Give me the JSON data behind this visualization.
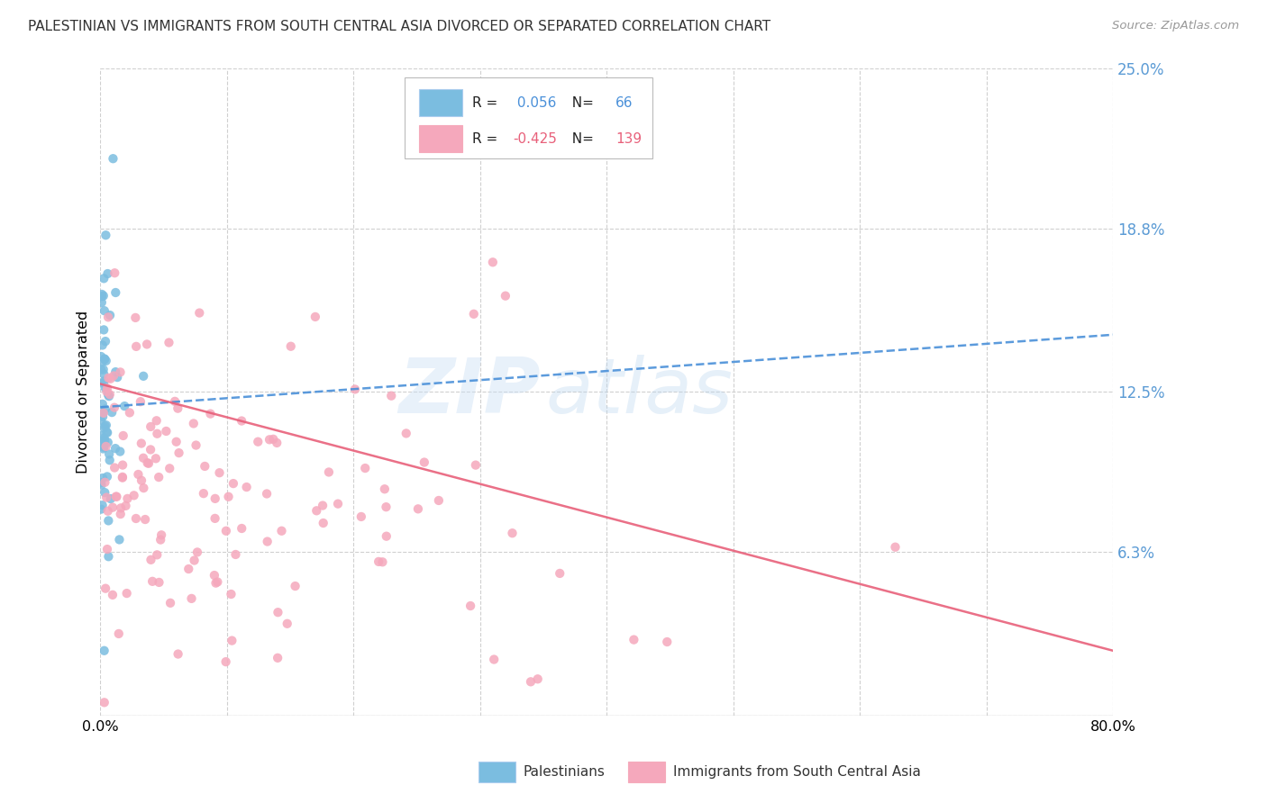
{
  "title": "PALESTINIAN VS IMMIGRANTS FROM SOUTH CENTRAL ASIA DIVORCED OR SEPARATED CORRELATION CHART",
  "source": "Source: ZipAtlas.com",
  "ylabel": "Divorced or Separated",
  "xlim": [
    0.0,
    0.8
  ],
  "ylim": [
    0.0,
    0.25
  ],
  "ytick_vals": [
    0.0,
    0.063,
    0.125,
    0.188,
    0.25
  ],
  "ytick_labels": [
    "",
    "6.3%",
    "12.5%",
    "18.8%",
    "25.0%"
  ],
  "xtick_vals": [
    0.0,
    0.1,
    0.2,
    0.3,
    0.4,
    0.5,
    0.6,
    0.7,
    0.8
  ],
  "xtick_labels": [
    "0.0%",
    "",
    "",
    "",
    "",
    "",
    "",
    "",
    "80.0%"
  ],
  "blue_R": 0.056,
  "blue_N": 66,
  "pink_R": -0.425,
  "pink_N": 139,
  "blue_color": "#7bbde0",
  "pink_color": "#f5a8bc",
  "trendline_blue_color": "#4a90d9",
  "trendline_pink_color": "#e8607a",
  "background_color": "#ffffff",
  "grid_color": "#d0d0d0",
  "watermark_text": "ZIP",
  "watermark_text2": "atlas",
  "legend_label_blue": "Palestinians",
  "legend_label_pink": "Immigrants from South Central Asia",
  "blue_trend_x": [
    0.0,
    0.8
  ],
  "blue_trend_y": [
    0.119,
    0.147
  ],
  "pink_trend_x": [
    0.0,
    0.8
  ],
  "pink_trend_y": [
    0.128,
    0.025
  ]
}
